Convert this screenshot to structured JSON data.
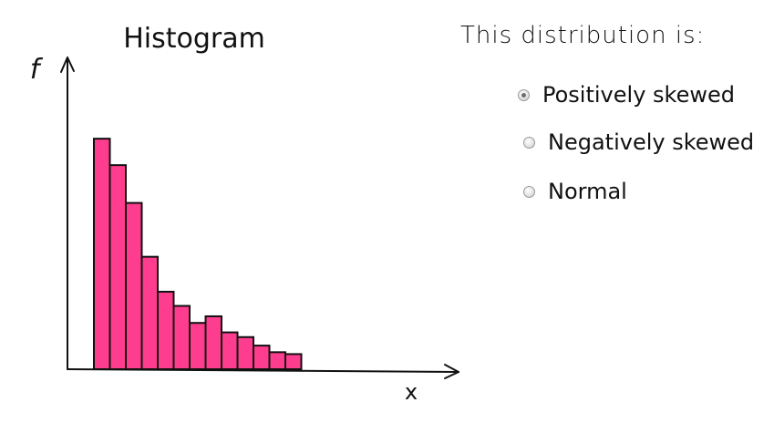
{
  "chart_data": {
    "type": "bar",
    "title": "Histogram",
    "xlabel": "x",
    "ylabel": "f",
    "values": [
      244,
      216,
      176,
      119,
      82,
      67,
      49,
      56,
      39,
      34,
      25,
      18,
      16
    ],
    "ylim": [
      0,
      330
    ],
    "grid": false,
    "bar_color": "#ff3d8e"
  },
  "question": {
    "prompt": "This distribution is:",
    "options": [
      {
        "label": "Positively skewed",
        "selected": true
      },
      {
        "label": "Negatively skewed",
        "selected": false
      },
      {
        "label": "Normal",
        "selected": false
      }
    ]
  }
}
